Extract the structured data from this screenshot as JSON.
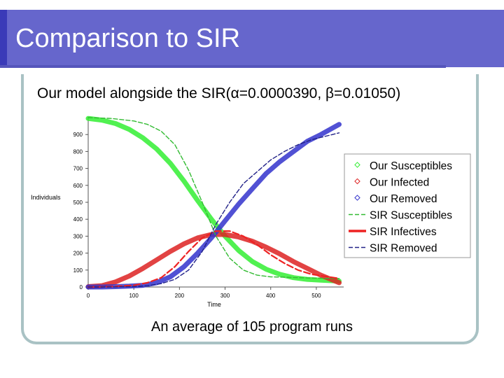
{
  "slide": {
    "title": "Comparison to SIR",
    "caption": "An average of 105 program runs"
  },
  "colors": {
    "title_bar": "#6666cc",
    "frame": "#a9c2c4",
    "our_susceptibles": "#33ee33",
    "our_infected": "#dd2222",
    "our_removed": "#3333cc",
    "sir_susceptibles": "#33bb33",
    "sir_infectives": "#ee2222",
    "sir_removed": "#222288"
  },
  "chart_data": {
    "type": "line",
    "title": "Our model alongside the SIR(α=0.0000390, β=0.01050)",
    "xlabel": "Time",
    "ylabel": "Individuals",
    "xlim": [
      0,
      560
    ],
    "ylim": [
      0,
      1000
    ],
    "xticks": [
      0,
      100,
      200,
      300,
      400,
      500
    ],
    "xtick_labels": [
      "0",
      "100",
      "200",
      "300",
      "400",
      "500"
    ],
    "yticks": [
      0,
      100,
      200,
      300,
      400,
      500,
      600,
      700,
      800,
      900
    ],
    "ytick_labels": [
      "0",
      "100",
      "200",
      "300",
      "400",
      "500",
      "600",
      "700",
      "800",
      "900"
    ],
    "legend_position": "right",
    "grid": false,
    "series": [
      {
        "name": "Our Susceptibles",
        "style": "thick",
        "color": "#33ee33",
        "x": [
          0,
          30,
          60,
          90,
          120,
          150,
          180,
          210,
          240,
          270,
          300,
          330,
          360,
          390,
          420,
          450,
          480,
          510,
          550
        ],
        "y": [
          995,
          985,
          965,
          930,
          880,
          815,
          730,
          625,
          510,
          400,
          300,
          215,
          150,
          105,
          75,
          55,
          45,
          40,
          35
        ]
      },
      {
        "name": "Our Infected",
        "style": "thick",
        "color": "#dd2222",
        "x": [
          0,
          30,
          60,
          90,
          120,
          150,
          180,
          210,
          240,
          270,
          300,
          330,
          360,
          390,
          420,
          450,
          480,
          510,
          550
        ],
        "y": [
          2,
          8,
          30,
          65,
          110,
          160,
          210,
          255,
          290,
          310,
          310,
          295,
          270,
          235,
          195,
          150,
          110,
          70,
          25
        ]
      },
      {
        "name": "Our Removed",
        "style": "thick",
        "color": "#3333cc",
        "x": [
          0,
          30,
          60,
          90,
          120,
          150,
          180,
          210,
          240,
          270,
          300,
          330,
          360,
          390,
          420,
          450,
          480,
          510,
          550
        ],
        "y": [
          0,
          0,
          2,
          5,
          10,
          25,
          60,
          120,
          200,
          290,
          390,
          490,
          580,
          670,
          740,
          800,
          860,
          900,
          960
        ]
      },
      {
        "name": "SIR Susceptibles",
        "style": "dashed",
        "color": "#33bb33",
        "x": [
          0,
          50,
          100,
          130,
          160,
          190,
          220,
          250,
          280,
          310,
          340,
          370,
          400,
          430,
          460,
          490,
          550
        ],
        "y": [
          1000,
          995,
          980,
          960,
          920,
          840,
          690,
          500,
          300,
          170,
          100,
          70,
          60,
          58,
          55,
          53,
          50
        ]
      },
      {
        "name": "SIR Infectives",
        "style": "solid",
        "color": "#ee2222",
        "x": [
          0,
          50,
          100,
          130,
          160,
          190,
          220,
          250,
          280,
          310,
          340,
          370,
          400,
          430,
          460,
          490,
          550
        ],
        "y": [
          0,
          2,
          10,
          25,
          55,
          120,
          210,
          290,
          330,
          330,
          300,
          250,
          190,
          140,
          100,
          75,
          50
        ]
      },
      {
        "name": "SIR Removed",
        "style": "dashed",
        "color": "#222288",
        "x": [
          0,
          50,
          100,
          130,
          160,
          190,
          220,
          250,
          280,
          310,
          340,
          370,
          400,
          430,
          460,
          490,
          550
        ],
        "y": [
          0,
          0,
          3,
          8,
          20,
          45,
          100,
          210,
          370,
          500,
          610,
          680,
          750,
          800,
          840,
          870,
          910
        ]
      }
    ]
  }
}
